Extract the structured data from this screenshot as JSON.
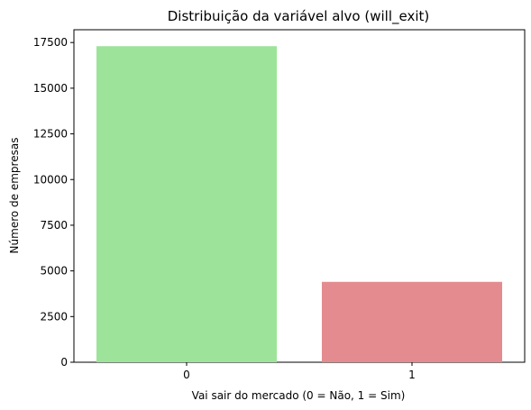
{
  "chart_data": {
    "type": "bar",
    "title": "Distribuição da variável alvo (will_exit)",
    "xlabel": "Vai sair do mercado (0 = Não, 1 = Sim)",
    "ylabel": "Número de empresas",
    "categories": [
      "0",
      "1"
    ],
    "values": [
      17300,
      4400
    ],
    "colors": [
      "#9de39a",
      "#e38b8e"
    ],
    "ylim": [
      0,
      18200
    ],
    "yticks": [
      0,
      2500,
      5000,
      7500,
      10000,
      12500,
      15000,
      17500
    ],
    "grid": false,
    "legend": "none"
  }
}
